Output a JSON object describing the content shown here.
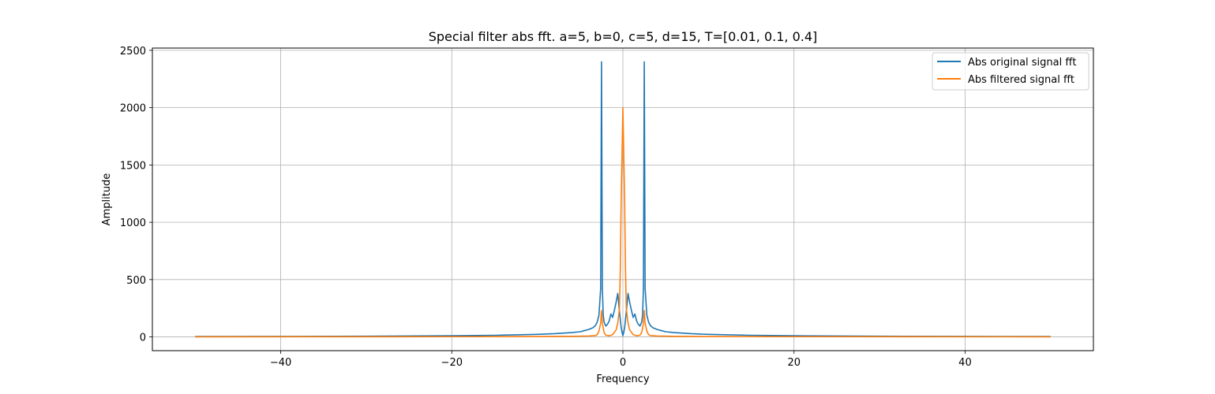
{
  "chart_data": {
    "type": "line",
    "title": "Special filter abs fft. a=5, b=0, c=5, d=15, T=[0.01, 0.1, 0.4]",
    "xlabel": "Frequency",
    "ylabel": "Amplitude",
    "xlim": [
      -55,
      55
    ],
    "ylim": [
      -120,
      2520
    ],
    "xticks": [
      -40,
      -20,
      0,
      20,
      40
    ],
    "xtick_labels": [
      "−40",
      "−20",
      "0",
      "20",
      "40"
    ],
    "yticks": [
      0,
      500,
      1000,
      1500,
      2000,
      2500
    ],
    "ytick_labels": [
      "0",
      "500",
      "1000",
      "1500",
      "2000",
      "2500"
    ],
    "grid": true,
    "legend_position": "upper right",
    "series": [
      {
        "name": "Abs original signal fft",
        "color": "#1f77b4",
        "x": [
          -50,
          -40,
          -30,
          -20,
          -15,
          -10,
          -8,
          -6,
          -5,
          -4.5,
          -4,
          -3.5,
          -3.2,
          -3.0,
          -2.8,
          -2.6,
          -2.5,
          -2.4,
          -2.3,
          -2.2,
          -2.0,
          -1.8,
          -1.6,
          -1.4,
          -1.2,
          -1.0,
          -0.8,
          -0.6,
          -0.4,
          -0.3,
          -0.2,
          -0.1,
          0,
          0.1,
          0.2,
          0.3,
          0.4,
          0.6,
          0.8,
          1.0,
          1.2,
          1.4,
          1.6,
          1.8,
          2.0,
          2.2,
          2.3,
          2.4,
          2.5,
          2.6,
          2.8,
          3.0,
          3.2,
          3.5,
          4,
          4.5,
          5,
          6,
          8,
          10,
          15,
          20,
          30,
          40,
          50
        ],
        "y": [
          3,
          4,
          6,
          10,
          14,
          22,
          28,
          38,
          45,
          55,
          65,
          80,
          100,
          130,
          190,
          420,
          2400,
          420,
          190,
          130,
          95,
          110,
          140,
          200,
          170,
          230,
          300,
          380,
          220,
          150,
          80,
          40,
          10,
          40,
          80,
          150,
          220,
          380,
          300,
          230,
          170,
          200,
          140,
          110,
          95,
          130,
          190,
          420,
          2400,
          420,
          190,
          130,
          100,
          80,
          65,
          55,
          45,
          38,
          28,
          22,
          14,
          10,
          6,
          4,
          3
        ]
      },
      {
        "name": "Abs filtered signal fft",
        "color": "#ff7f0e",
        "x": [
          -50,
          -20,
          -10,
          -6,
          -4,
          -3.2,
          -3.0,
          -2.8,
          -2.6,
          -2.5,
          -2.4,
          -2.2,
          -2.0,
          -1.6,
          -1.2,
          -0.8,
          -0.6,
          -0.4,
          -0.3,
          -0.2,
          -0.1,
          0,
          0.1,
          0.2,
          0.3,
          0.4,
          0.6,
          0.8,
          1.2,
          1.6,
          2.0,
          2.2,
          2.4,
          2.5,
          2.6,
          2.8,
          3.0,
          3.2,
          4,
          6,
          10,
          20,
          50
        ],
        "y": [
          1,
          2,
          3,
          5,
          8,
          12,
          20,
          50,
          120,
          230,
          120,
          40,
          15,
          10,
          20,
          60,
          120,
          250,
          600,
          1200,
          1600,
          2000,
          1600,
          1200,
          600,
          250,
          120,
          60,
          20,
          10,
          15,
          40,
          120,
          230,
          120,
          50,
          20,
          12,
          8,
          5,
          3,
          2,
          1
        ]
      }
    ]
  }
}
